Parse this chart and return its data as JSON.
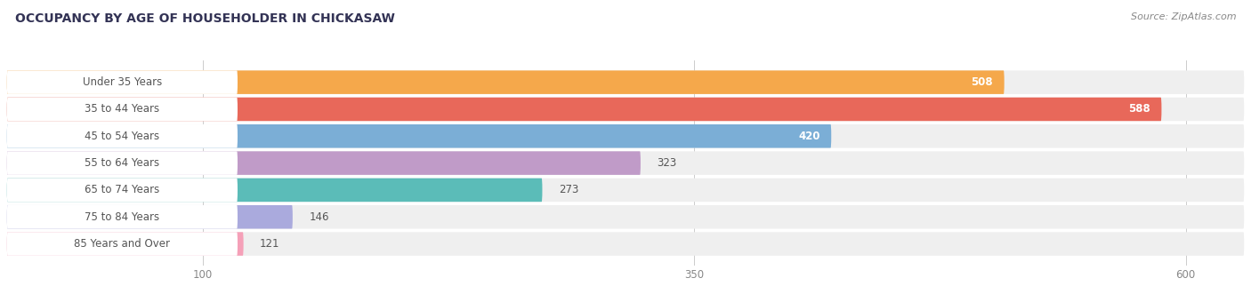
{
  "title": "OCCUPANCY BY AGE OF HOUSEHOLDER IN CHICKASAW",
  "source": "Source: ZipAtlas.com",
  "categories": [
    "Under 35 Years",
    "35 to 44 Years",
    "45 to 54 Years",
    "55 to 64 Years",
    "65 to 74 Years",
    "75 to 84 Years",
    "85 Years and Over"
  ],
  "values": [
    508,
    588,
    420,
    323,
    273,
    146,
    121
  ],
  "bar_colors": [
    "#F5A84B",
    "#E8685A",
    "#7BAED6",
    "#C09BC8",
    "#5BBCB8",
    "#AAAADD",
    "#F5A0B8"
  ],
  "xlim_max": 630,
  "xticks": [
    100,
    350,
    600
  ],
  "value_inside_threshold": 350,
  "background_color": "#FFFFFF",
  "row_bg_color": "#EFEFEF",
  "label_bg_color": "#FFFFFF",
  "label_text_color": "#555555",
  "value_color_inside": "#FFFFFF",
  "value_color_outside": "#555555",
  "title_fontsize": 10,
  "source_fontsize": 8,
  "category_fontsize": 8.5,
  "value_fontsize": 8.5,
  "tick_fontsize": 8.5
}
